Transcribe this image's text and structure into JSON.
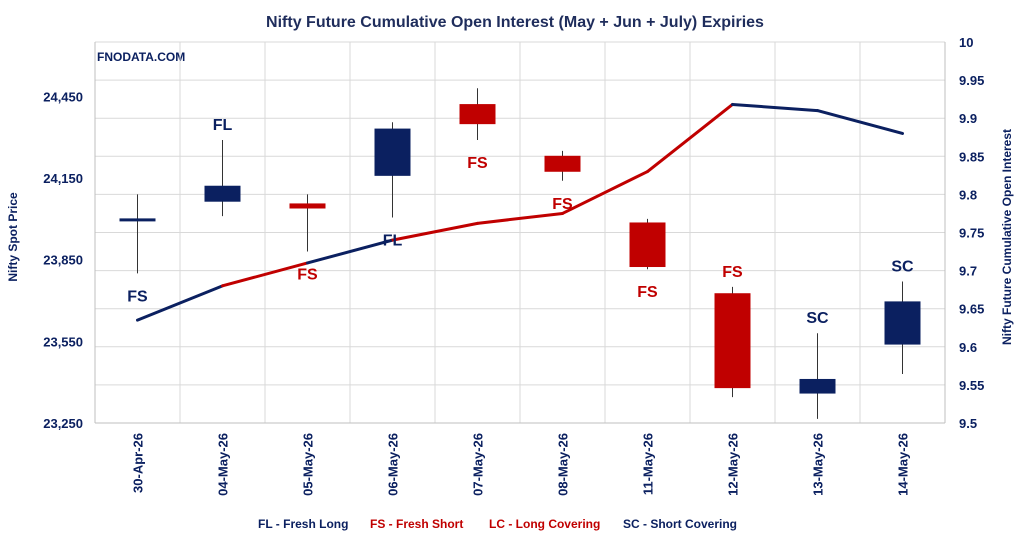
{
  "chart_data": {
    "type": "candlestick-line",
    "title": "Nifty Future Cumulative Open Interest (May + Jun + July) Expiries",
    "watermark": "FNODATA.COM",
    "ylabel_left": "Nifty Spot Price",
    "ylabel_right": "Nifty Future Cumulative Open Interest",
    "ylim_left": [
      23250,
      24650
    ],
    "ylim_right": [
      9.5,
      10
    ],
    "yticks_left": [
      "23,250",
      "23,550",
      "23,850",
      "24,150",
      "24,450"
    ],
    "yticks_left_values": [
      23250,
      23550,
      23850,
      24150,
      24450
    ],
    "yticks_right": [
      "9.5",
      "9.55",
      "9.6",
      "9.65",
      "9.7",
      "9.75",
      "9.8",
      "9.85",
      "9.9",
      "9.95",
      "10"
    ],
    "yticks_right_values": [
      9.5,
      9.55,
      9.6,
      9.65,
      9.7,
      9.75,
      9.8,
      9.85,
      9.9,
      9.95,
      10
    ],
    "categories": [
      "30-Apr-26",
      "04-May-26",
      "05-May-26",
      "06-May-26",
      "07-May-26",
      "08-May-26",
      "11-May-26",
      "12-May-26",
      "13-May-26",
      "14-May-26"
    ],
    "candles": [
      {
        "open": 24000,
        "high": 24090,
        "low": 23800,
        "close": 24000,
        "label": "FS",
        "color": "#0b2060"
      },
      {
        "open": 24065,
        "high": 24290,
        "low": 24010,
        "close": 24120,
        "label": "FL",
        "color": "#0b2060"
      },
      {
        "open": 24055,
        "high": 24090,
        "low": 23880,
        "close": 24040,
        "label": "FS",
        "color": "#c00000"
      },
      {
        "open": 24160,
        "high": 24355,
        "low": 24005,
        "close": 24330,
        "label": "FL",
        "color": "#0b2060"
      },
      {
        "open": 24420,
        "high": 24480,
        "low": 24290,
        "close": 24350,
        "label": "FS",
        "color": "#c00000"
      },
      {
        "open": 24230,
        "high": 24250,
        "low": 24140,
        "close": 24175,
        "label": "FS",
        "color": "#c00000"
      },
      {
        "open": 23985,
        "high": 24000,
        "low": 23815,
        "close": 23825,
        "label": "FS",
        "color": "#c00000"
      },
      {
        "open": 23725,
        "high": 23750,
        "low": 23345,
        "close": 23380,
        "label": "FS",
        "color": "#c00000"
      },
      {
        "open": 23360,
        "high": 23580,
        "low": 23265,
        "close": 23410,
        "label": "SC",
        "color": "#0b2060"
      },
      {
        "open": 23540,
        "high": 23770,
        "low": 23430,
        "close": 23695,
        "label": "SC",
        "color": "#0b2060"
      }
    ],
    "label_positions": [
      "below",
      "above",
      "below",
      "below",
      "below",
      "below",
      "below",
      "above",
      "above",
      "above"
    ],
    "oi_series": {
      "name": "Nifty Future Cumulative Open Interest",
      "values": [
        9.635,
        9.68,
        9.71,
        9.74,
        9.762,
        9.775,
        9.83,
        9.918,
        9.91,
        9.88
      ],
      "segment_colors": [
        "#0b2060",
        "#c00000",
        "#0b2060",
        "#c00000",
        "#c00000",
        "#c00000",
        "#c00000",
        "#0b2060",
        "#0b2060"
      ]
    },
    "grid": true,
    "legend_position": "bottom",
    "legend": [
      {
        "text": "FL - Fresh Long",
        "color": "#0b2060"
      },
      {
        "text": "FS - Fresh Short",
        "color": "#c00000"
      },
      {
        "text": "LC - Long Covering",
        "color": "#c00000"
      },
      {
        "text": "SC - Short Covering",
        "color": "#0b2060"
      }
    ]
  }
}
